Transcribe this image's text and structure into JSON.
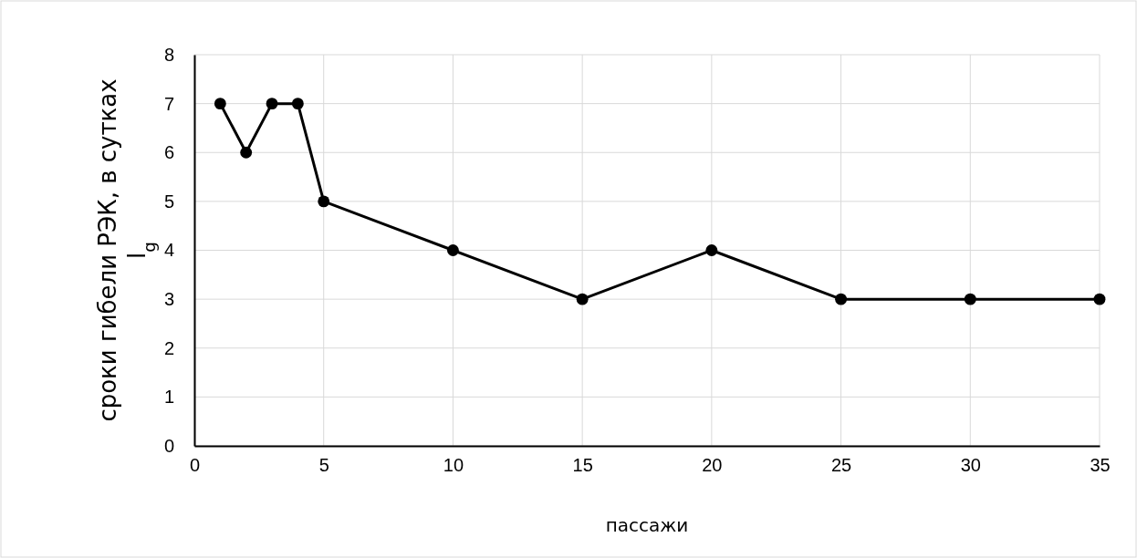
{
  "chart_data": {
    "type": "line",
    "xlabel": "пассажи",
    "ylabel": "сроки гибели РЭК, в сутках l$_{g}$",
    "series": [
      {
        "color": "#000000",
        "x": [
          1,
          2,
          3,
          4,
          5,
          10,
          15,
          20,
          25,
          30,
          35
        ],
        "values": [
          7,
          6,
          7,
          7,
          5,
          4,
          3,
          4,
          3,
          3,
          3
        ]
      }
    ],
    "xlim": [
      0,
      35
    ],
    "xticks": [
      0,
      5,
      10,
      15,
      20,
      25,
      30,
      35
    ],
    "ylim": [
      0,
      8
    ],
    "yticks": [
      0,
      1,
      2,
      3,
      4,
      5,
      6,
      7,
      8
    ],
    "grid": true,
    "marker": "circle",
    "line_style": "solid"
  }
}
